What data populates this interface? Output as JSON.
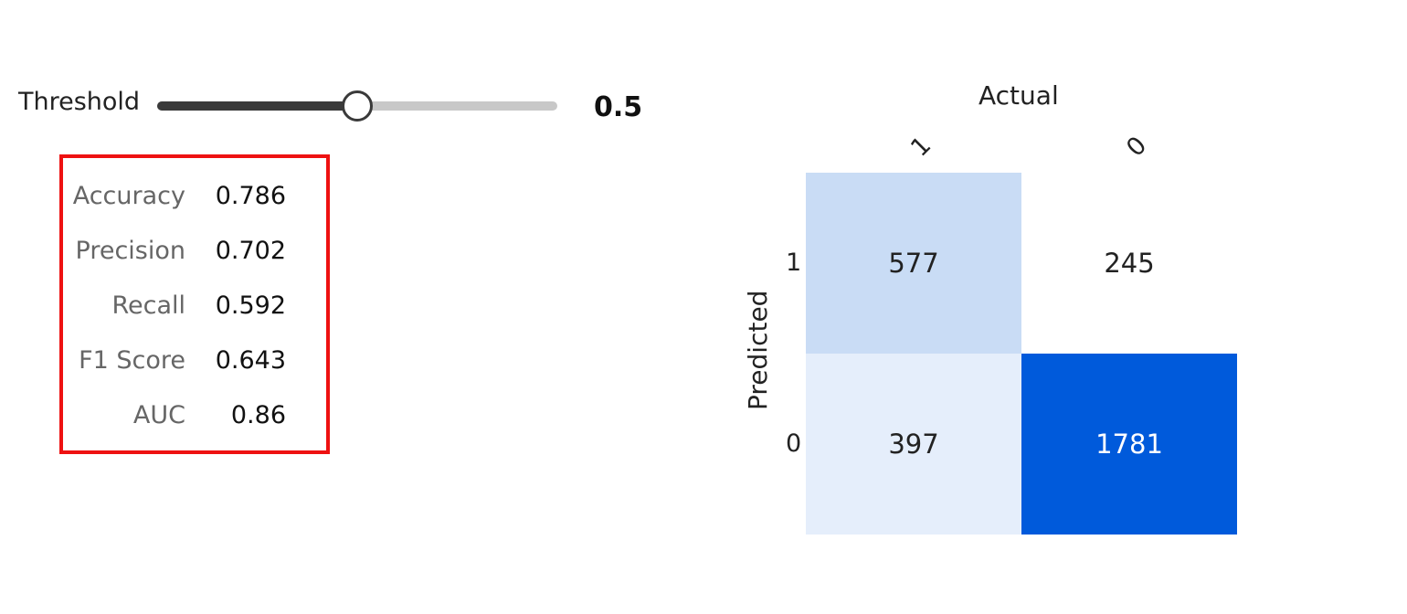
{
  "threshold": {
    "label": "Threshold",
    "value_text": "0.5",
    "value": 0.5,
    "min": 0,
    "max": 1
  },
  "metrics": [
    {
      "label": "Accuracy",
      "value": "0.786"
    },
    {
      "label": "Precision",
      "value": "0.702"
    },
    {
      "label": "Recall",
      "value": "0.592"
    },
    {
      "label": "F1 Score",
      "value": "0.643"
    },
    {
      "label": "AUC",
      "value": "0.86"
    }
  ],
  "colors": {
    "highlight_border": "#ee1111",
    "slider_active": "#3a3a3a",
    "slider_inactive": "#c8c8c8",
    "cell_high": "#005adb",
    "cell_mid": "#c9dcf5",
    "cell_low": "#e5eefb",
    "cell_none": "#ffffff"
  },
  "chart_data": {
    "type": "heatmap",
    "xlabel": "Actual",
    "ylabel": "Predicted",
    "x_categories": [
      "1",
      "0"
    ],
    "y_categories": [
      "1",
      "0"
    ],
    "values": [
      [
        577,
        245
      ],
      [
        397,
        1781
      ]
    ]
  }
}
